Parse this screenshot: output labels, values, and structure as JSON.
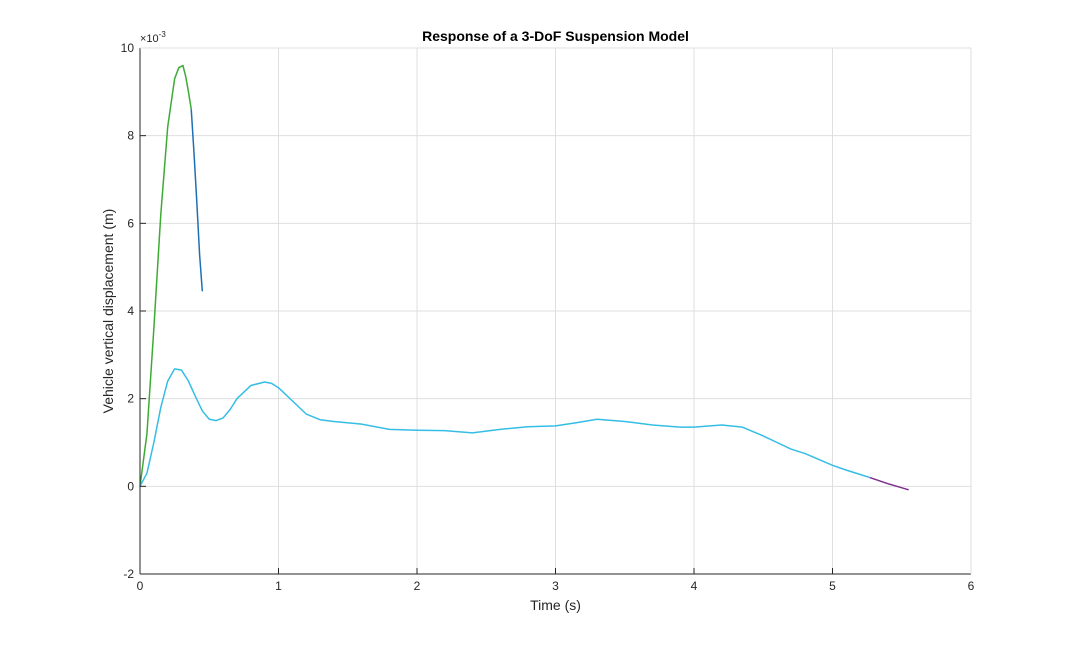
{
  "chart_data": {
    "type": "line",
    "title": "Response of a 3-DoF Suspension Model",
    "xlabel": "Time (s)",
    "ylabel": "Vehicle vertical displacement (m)",
    "y_exponent_label": "×10",
    "y_exponent_power": "-3",
    "xlim": [
      0,
      6
    ],
    "ylim": [
      -2,
      10
    ],
    "x_ticks": [
      "0",
      "1",
      "2",
      "3",
      "4",
      "5",
      "6"
    ],
    "y_ticks": [
      "-2",
      "0",
      "2",
      "4",
      "6",
      "8",
      "10"
    ],
    "grid": true,
    "y_unit_scale": "1e-3",
    "series": [
      {
        "color": "#3cab33",
        "x": [
          0,
          0.05,
          0.1,
          0.15,
          0.2,
          0.25,
          0.28,
          0.31,
          0.33,
          0.35,
          0.37
        ],
        "y": [
          0,
          1.2,
          3.6,
          6.2,
          8.2,
          9.3,
          9.55,
          9.6,
          9.35,
          9.0,
          8.6
        ]
      },
      {
        "color": "#1f6fb4",
        "x": [
          0.37,
          0.39,
          0.41,
          0.43,
          0.45
        ],
        "y": [
          8.6,
          7.6,
          6.5,
          5.3,
          4.45
        ]
      },
      {
        "color": "#35bde6",
        "x": [
          0,
          0.05,
          0.1,
          0.15,
          0.2,
          0.25,
          0.3,
          0.35,
          0.4,
          0.45,
          0.5,
          0.55,
          0.6,
          0.65,
          0.7,
          0.8,
          0.9,
          0.95,
          1.0,
          1.1,
          1.2,
          1.3,
          1.4,
          1.6,
          1.8,
          2.0,
          2.2,
          2.4,
          2.6,
          2.8,
          3.0,
          3.15,
          3.3,
          3.5,
          3.7,
          3.9,
          4.0,
          4.2,
          4.35,
          4.5,
          4.6,
          4.7,
          4.8,
          5.0,
          5.1,
          5.2,
          5.27
        ],
        "y": [
          0,
          0.3,
          1.0,
          1.8,
          2.4,
          2.68,
          2.65,
          2.4,
          2.05,
          1.72,
          1.53,
          1.5,
          1.56,
          1.75,
          2.0,
          2.3,
          2.38,
          2.35,
          2.25,
          1.95,
          1.65,
          1.52,
          1.48,
          1.42,
          1.3,
          1.28,
          1.27,
          1.22,
          1.3,
          1.36,
          1.38,
          1.45,
          1.53,
          1.48,
          1.4,
          1.35,
          1.35,
          1.4,
          1.35,
          1.15,
          1.0,
          0.85,
          0.75,
          0.48,
          0.37,
          0.27,
          0.2
        ]
      },
      {
        "color": "#7e2f8e",
        "x": [
          5.27,
          5.4,
          5.55
        ],
        "y": [
          0.2,
          0.06,
          -0.08
        ]
      }
    ]
  }
}
